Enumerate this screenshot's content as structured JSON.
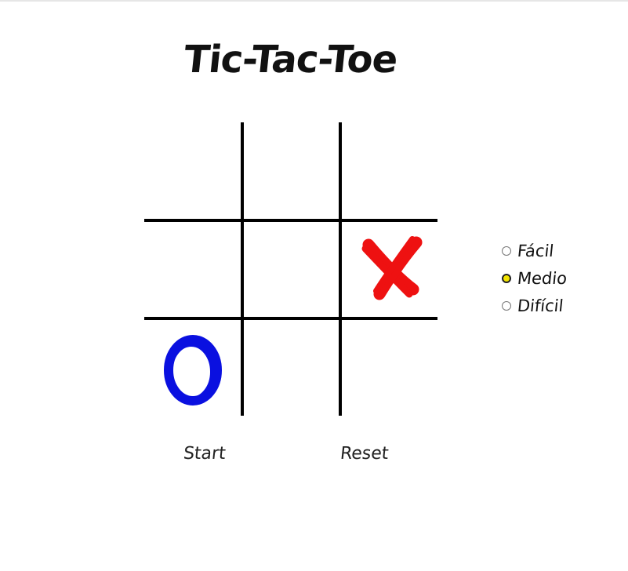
{
  "game": {
    "title": "Tic-Tac-Toe",
    "board": [
      [
        "",
        "",
        ""
      ],
      [
        "",
        "",
        "X"
      ],
      [
        "O",
        "",
        ""
      ]
    ],
    "colors": {
      "x": "#ee1111",
      "o": "#0a10e0",
      "grid": "#000000",
      "selected_radio": "#f2e400"
    }
  },
  "difficulty": {
    "options": [
      "Fácil",
      "Medio",
      "Difícil"
    ],
    "selected": "Medio"
  },
  "controls": {
    "start_label": "Start",
    "reset_label": "Reset"
  }
}
